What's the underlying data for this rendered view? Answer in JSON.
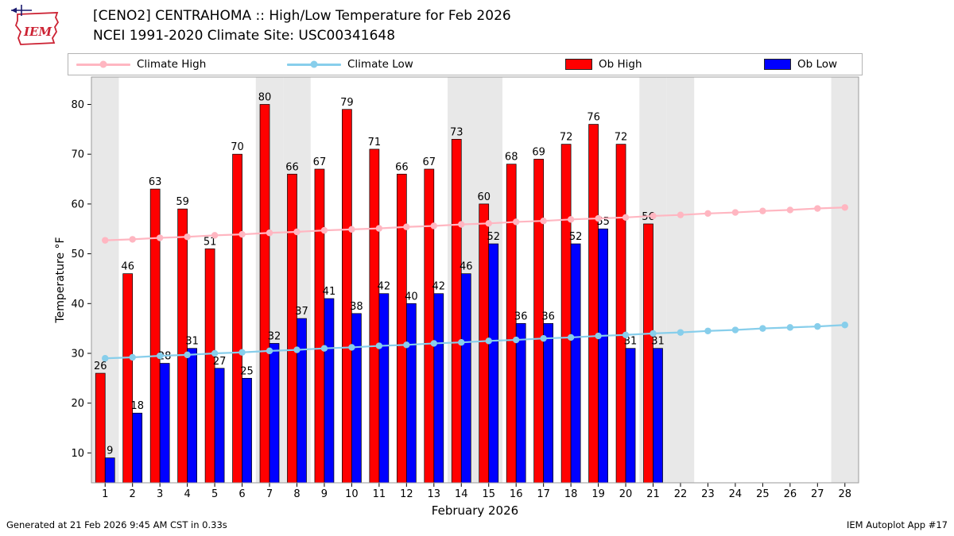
{
  "header": {
    "title_line1": "[CENO2] CENTRAHOMA :: High/Low Temperature for Feb 2026",
    "title_line2": "NCEI 1991-2020 Climate Site: USC00341648",
    "logo_text": "IEM"
  },
  "legend": {
    "items": [
      {
        "label": "Climate High",
        "type": "line",
        "color": "#ffb6c1"
      },
      {
        "label": "Climate Low",
        "type": "line",
        "color": "#87ceeb"
      },
      {
        "label": "Ob High",
        "type": "patch",
        "color": "#ff0000"
      },
      {
        "label": "Ob Low",
        "type": "patch",
        "color": "#0000ff"
      }
    ]
  },
  "footer": {
    "left": "Generated at 21 Feb 2026 9:45 AM CST in 0.33s",
    "right": "IEM Autoplot App #17"
  },
  "chart_data": {
    "type": "bar",
    "title": "[CENO2] CENTRAHOMA :: High/Low Temperature for Feb 2026",
    "subtitle": "NCEI 1991-2020 Climate Site: USC00341648",
    "xlabel": "February 2026",
    "ylabel": "Temperature °F",
    "ylim": [
      4,
      85.5
    ],
    "yticks": [
      10,
      20,
      30,
      40,
      50,
      60,
      70,
      80
    ],
    "x": [
      1,
      2,
      3,
      4,
      5,
      6,
      7,
      8,
      9,
      10,
      11,
      12,
      13,
      14,
      15,
      16,
      17,
      18,
      19,
      20,
      21,
      22,
      23,
      24,
      25,
      26,
      27,
      28
    ],
    "weekend_shaded_days": [
      1,
      7,
      8,
      14,
      15,
      21,
      22,
      28
    ],
    "weekend_band_color": "#e8e8e8",
    "grid": false,
    "legend_position": "top",
    "bar_labels": true,
    "series": [
      {
        "name": "Ob High",
        "type": "bar",
        "color": "#ff0000",
        "x": [
          1,
          2,
          3,
          4,
          5,
          6,
          7,
          8,
          9,
          10,
          11,
          12,
          13,
          14,
          15,
          16,
          17,
          18,
          19,
          20,
          21
        ],
        "values": [
          26,
          46,
          63,
          59,
          51,
          70,
          80,
          66,
          67,
          79,
          71,
          66,
          67,
          73,
          60,
          68,
          69,
          72,
          76,
          72,
          56
        ]
      },
      {
        "name": "Ob Low",
        "type": "bar",
        "color": "#0000ff",
        "x": [
          1,
          2,
          3,
          4,
          5,
          6,
          7,
          8,
          9,
          10,
          11,
          12,
          13,
          14,
          15,
          16,
          17,
          18,
          19,
          20,
          21
        ],
        "values": [
          9,
          18,
          28,
          31,
          27,
          25,
          32,
          37,
          41,
          38,
          42,
          40,
          42,
          46,
          52,
          36,
          36,
          52,
          55,
          31,
          31
        ]
      },
      {
        "name": "Climate High",
        "type": "line",
        "color": "#ffb6c1",
        "x": [
          1,
          2,
          3,
          4,
          5,
          6,
          7,
          8,
          9,
          10,
          11,
          12,
          13,
          14,
          15,
          16,
          17,
          18,
          19,
          20,
          21,
          22,
          23,
          24,
          25,
          26,
          27,
          28
        ],
        "values": [
          52.7,
          52.9,
          53.2,
          53.4,
          53.7,
          53.9,
          54.2,
          54.4,
          54.7,
          54.9,
          55.1,
          55.4,
          55.6,
          55.9,
          56.1,
          56.4,
          56.6,
          56.9,
          57.1,
          57.3,
          57.6,
          57.8,
          58.1,
          58.3,
          58.6,
          58.8,
          59.1,
          59.3
        ]
      },
      {
        "name": "Climate Low",
        "type": "line",
        "color": "#87ceeb",
        "x": [
          1,
          2,
          3,
          4,
          5,
          6,
          7,
          8,
          9,
          10,
          11,
          12,
          13,
          14,
          15,
          16,
          17,
          18,
          19,
          20,
          21,
          22,
          23,
          24,
          25,
          26,
          27,
          28
        ],
        "values": [
          29.0,
          29.2,
          29.5,
          29.7,
          30.0,
          30.2,
          30.5,
          30.7,
          31.0,
          31.2,
          31.5,
          31.7,
          32.0,
          32.2,
          32.5,
          32.7,
          33.0,
          33.2,
          33.5,
          33.7,
          34.0,
          34.2,
          34.5,
          34.7,
          35.0,
          35.2,
          35.4,
          35.7
        ]
      }
    ]
  }
}
